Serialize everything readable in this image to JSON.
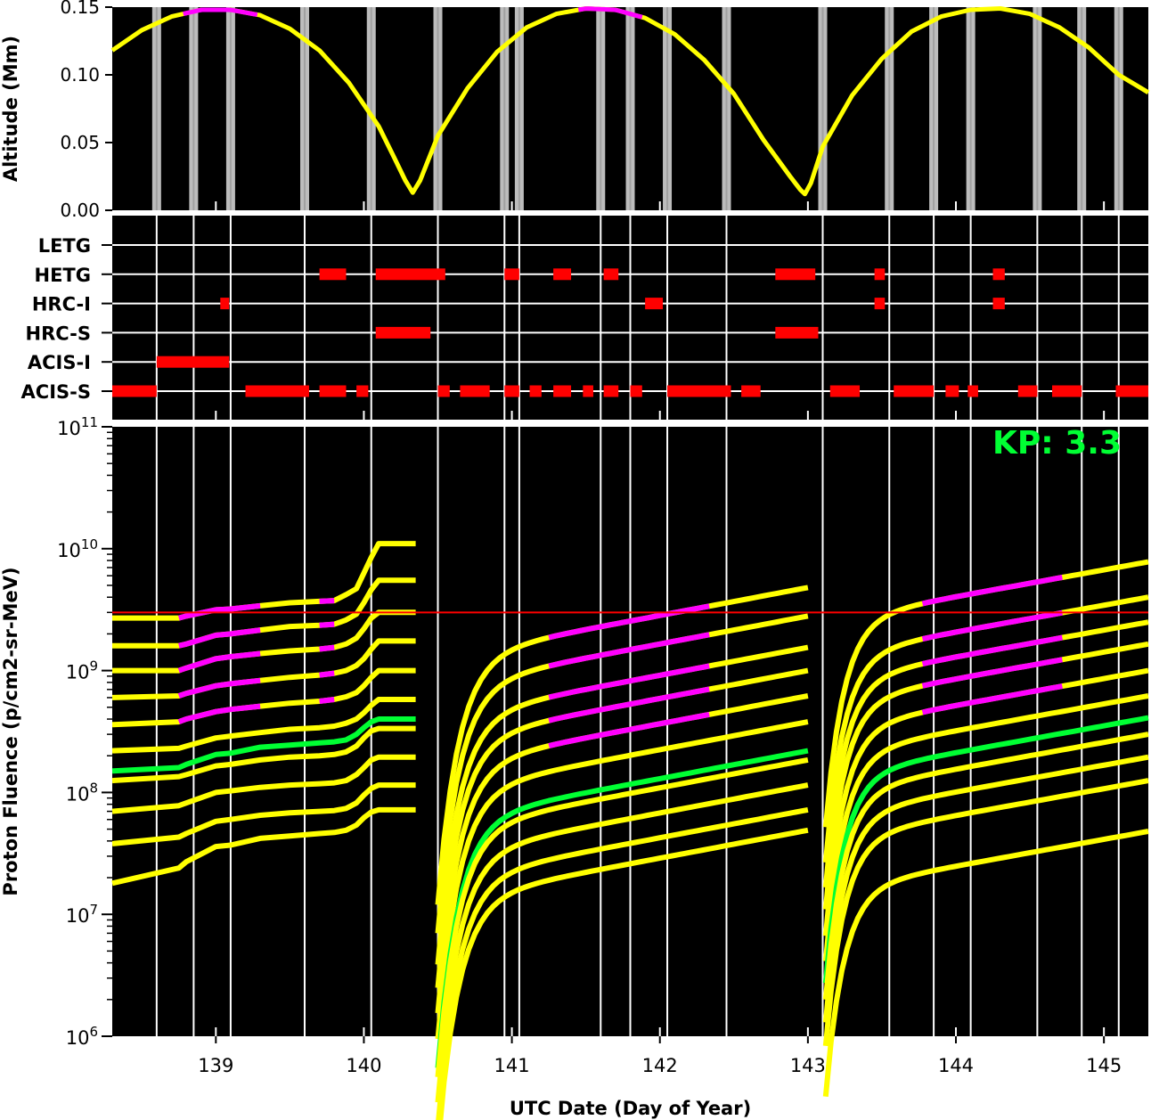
{
  "chart_data": [
    {
      "type": "line",
      "panel": "altitude",
      "ylabel": "Altitude (Mm)",
      "ylim": [
        0.0,
        0.15
      ],
      "yticks": [
        "0.00",
        "0.05",
        "0.10",
        "0.15"
      ],
      "xlim": [
        138.3,
        145.3
      ],
      "series": [
        {
          "color": "#ffff00",
          "x": [
            138.3,
            138.5,
            138.7,
            138.9,
            139.1,
            139.3,
            139.5,
            139.7,
            139.9,
            140.1,
            140.2,
            140.28,
            140.33,
            140.38,
            140.5,
            140.7,
            140.9,
            141.1,
            141.3,
            141.5,
            141.7,
            141.9,
            142.1,
            142.3,
            142.5,
            142.7,
            142.88,
            142.95,
            142.98,
            143.02,
            143.1,
            143.3,
            143.5,
            143.7,
            143.9,
            144.1,
            144.3,
            144.5,
            144.7,
            144.9,
            145.1,
            145.3
          ],
          "y": [
            0.118,
            0.133,
            0.143,
            0.148,
            0.148,
            0.144,
            0.134,
            0.118,
            0.094,
            0.062,
            0.04,
            0.022,
            0.013,
            0.022,
            0.055,
            0.09,
            0.117,
            0.135,
            0.145,
            0.149,
            0.148,
            0.142,
            0.13,
            0.111,
            0.086,
            0.052,
            0.025,
            0.015,
            0.012,
            0.02,
            0.047,
            0.085,
            0.112,
            0.132,
            0.143,
            0.148,
            0.149,
            0.145,
            0.135,
            0.12,
            0.1,
            0.087
          ]
        }
      ],
      "highlight_color": "#ff00ff",
      "highlight_ranges": [
        [
          138.78,
          139.28
        ],
        [
          141.45,
          141.88
        ]
      ],
      "shaded_bands_color": "#dddddd",
      "shaded_bands_x": [
        138.6,
        138.85,
        139.1,
        139.6,
        140.05,
        140.5,
        140.95,
        141.05,
        141.6,
        141.8,
        142.05,
        142.45,
        143.1,
        143.55,
        143.85,
        144.1,
        144.55,
        144.85,
        145.1
      ]
    },
    {
      "type": "timeline",
      "panel": "instruments",
      "categories": [
        "LETG",
        "HETG",
        "HRC-I",
        "HRC-S",
        "ACIS-I",
        "ACIS-S"
      ],
      "bar_color": "#ff0000",
      "intervals": {
        "LETG": [],
        "HETG": [
          [
            139.7,
            139.88
          ],
          [
            140.08,
            140.55
          ],
          [
            140.95,
            141.05
          ],
          [
            141.28,
            141.4
          ],
          [
            141.62,
            141.72
          ],
          [
            142.78,
            143.05
          ],
          [
            143.45,
            143.52
          ],
          [
            144.25,
            144.33
          ]
        ],
        "HRC-I": [
          [
            139.03,
            139.09
          ],
          [
            141.9,
            142.02
          ],
          [
            143.45,
            143.52
          ],
          [
            144.25,
            144.33
          ]
        ],
        "HRC-S": [
          [
            140.08,
            140.45
          ],
          [
            142.78,
            143.07
          ]
        ],
        "ACIS-I": [
          [
            138.6,
            139.09
          ]
        ],
        "ACIS-S": [
          [
            138.3,
            138.6
          ],
          [
            139.2,
            139.63
          ],
          [
            139.7,
            139.88
          ],
          [
            139.95,
            140.03
          ],
          [
            140.5,
            140.58
          ],
          [
            140.65,
            140.85
          ],
          [
            140.95,
            141.05
          ],
          [
            141.12,
            141.2
          ],
          [
            141.28,
            141.4
          ],
          [
            141.48,
            141.55
          ],
          [
            141.62,
            141.72
          ],
          [
            141.8,
            141.88
          ],
          [
            142.05,
            142.48
          ],
          [
            142.55,
            142.68
          ],
          [
            143.15,
            143.35
          ],
          [
            143.58,
            143.85
          ],
          [
            143.93,
            144.02
          ],
          [
            144.08,
            144.15
          ],
          [
            144.42,
            144.55
          ],
          [
            144.65,
            144.85
          ],
          [
            145.08,
            145.3
          ]
        ]
      },
      "gridlines_x": [
        138.6,
        138.85,
        139.1,
        139.6,
        140.05,
        140.5,
        140.95,
        141.05,
        141.6,
        141.8,
        142.05,
        142.45,
        143.1,
        143.55,
        143.85,
        144.1,
        144.55,
        144.85,
        145.1
      ]
    },
    {
      "type": "line",
      "panel": "fluence",
      "ylabel": "Proton Fluence (p/cm2-sr-MeV)",
      "xlabel": "UTC Date (Day of Year)",
      "yscale": "log",
      "ylim": [
        1000000.0,
        100000000000.0
      ],
      "ytick_labels": [
        "10^6",
        "10^7",
        "10^8",
        "10^9",
        "10^10",
        "10^11"
      ],
      "xlim": [
        138.3,
        145.3
      ],
      "xtick_labels": [
        "139",
        "140",
        "141",
        "142",
        "143",
        "144",
        "145"
      ],
      "threshold": 3000000000.0,
      "threshold_color": "#ff0000",
      "segment_starts": [
        138.3,
        140.5,
        143.12
      ],
      "segment_ends": [
        140.35,
        143.0,
        145.3
      ],
      "segment_end_values": [
        [
          11000000000.0,
          5500000000.0,
          3000000000.0,
          1750000000.0,
          1000000000.0,
          580000000.0,
          400000000.0,
          335000000.0,
          195000000.0,
          115000000.0,
          72000000.0
        ],
        [
          4800000000.0,
          2800000000.0,
          1550000000.0,
          1000000000.0,
          620000000.0,
          380000000.0,
          220000000.0,
          185000000.0,
          115000000.0,
          72000000.0,
          49000000.0
        ],
        [
          7800000000.0,
          4000000000.0,
          2500000000.0,
          1650000000.0,
          1000000000.0,
          620000000.0,
          410000000.0,
          300000000.0,
          195000000.0,
          125000000.0,
          48000000.0
        ]
      ],
      "series": [
        {
          "color": "#ffff00",
          "x": [
            138.3,
            138.75,
            138.8,
            139.0,
            139.1,
            139.3,
            139.5,
            139.7,
            139.8,
            139.88,
            139.95,
            140.0,
            140.05,
            140.1,
            140.35
          ],
          "y": [
            2700000000.0,
            2700000000.0,
            2800000000.0,
            3150000000.0,
            3200000000.0,
            3400000000.0,
            3600000000.0,
            3700000000.0,
            3750000000.0,
            4200000000.0,
            4700000000.0,
            6300000000.0,
            8500000000.0,
            11000000000.0,
            11000000000.0
          ]
        },
        {
          "color": "#ffff00",
          "x": [
            138.3,
            138.75,
            138.8,
            139.0,
            139.1,
            139.3,
            139.5,
            139.7,
            139.8,
            139.88,
            139.95,
            140.0,
            140.05,
            140.1,
            140.35
          ],
          "y": [
            1600000000.0,
            1600000000.0,
            1650000000.0,
            1950000000.0,
            2000000000.0,
            2150000000.0,
            2300000000.0,
            2350000000.0,
            2400000000.0,
            2600000000.0,
            2900000000.0,
            3600000000.0,
            4600000000.0,
            5500000000.0,
            5500000000.0
          ]
        },
        {
          "color": "#ffff00",
          "x": [
            138.3,
            138.75,
            138.8,
            139.0,
            139.1,
            139.3,
            139.5,
            139.7,
            139.8,
            139.88,
            139.95,
            140.0,
            140.05,
            140.1,
            140.35
          ],
          "y": [
            1000000000.0,
            1000000000.0,
            1050000000.0,
            1250000000.0,
            1300000000.0,
            1380000000.0,
            1450000000.0,
            1500000000.0,
            1550000000.0,
            1650000000.0,
            1850000000.0,
            2200000000.0,
            2700000000.0,
            3000000000.0,
            3000000000.0
          ]
        },
        {
          "color": "#ffff00",
          "x": [
            138.3,
            138.75,
            138.8,
            139.0,
            139.1,
            139.3,
            139.5,
            139.7,
            139.8,
            139.88,
            139.95,
            140.0,
            140.05,
            140.1,
            140.35
          ],
          "y": [
            600000000.0,
            620000000.0,
            650000000.0,
            750000000.0,
            780000000.0,
            830000000.0,
            880000000.0,
            920000000.0,
            950000000.0,
            1000000000.0,
            1100000000.0,
            1250000000.0,
            1500000000.0,
            1750000000.0,
            1750000000.0
          ]
        },
        {
          "color": "#ffff00",
          "x": [
            138.3,
            138.75,
            138.8,
            139.0,
            139.1,
            139.3,
            139.5,
            139.7,
            139.8,
            139.88,
            139.95,
            140.0,
            140.05,
            140.1,
            140.35
          ],
          "y": [
            360000000.0,
            380000000.0,
            400000000.0,
            460000000.0,
            480000000.0,
            510000000.0,
            540000000.0,
            560000000.0,
            580000000.0,
            610000000.0,
            660000000.0,
            750000000.0,
            880000000.0,
            1000000000.0,
            1000000000.0
          ]
        },
        {
          "color": "#ffff00",
          "x": [
            138.3,
            138.75,
            138.8,
            139.0,
            139.1,
            139.3,
            139.5,
            139.7,
            139.8,
            139.88,
            139.95,
            140.0,
            140.05,
            140.1,
            140.35
          ],
          "y": [
            220000000.0,
            230000000.0,
            240000000.0,
            280000000.0,
            290000000.0,
            310000000.0,
            330000000.0,
            340000000.0,
            350000000.0,
            370000000.0,
            400000000.0,
            450000000.0,
            520000000.0,
            580000000.0,
            580000000.0
          ]
        },
        {
          "color": "#ffff00",
          "x": [
            138.3,
            138.75,
            138.8,
            139.0,
            139.1,
            139.3,
            139.5,
            139.7,
            139.8,
            139.88,
            139.95,
            140.0,
            140.05,
            140.1,
            140.35
          ],
          "y": [
            150000000.0,
            160000000.0,
            170000000.0,
            205000000.0,
            210000000.0,
            235000000.0,
            245000000.0,
            255000000.0,
            260000000.0,
            270000000.0,
            300000000.0,
            340000000.0,
            380000000.0,
            400000000.0,
            400000000.0
          ]
        },
        {
          "color": "#ffff00",
          "x": [
            138.3,
            138.75,
            138.8,
            139.0,
            139.1,
            139.3,
            139.5,
            139.7,
            139.8,
            139.88,
            139.95,
            140.0,
            140.05,
            140.1,
            140.35
          ],
          "y": [
            125000000.0,
            135000000.0,
            140000000.0,
            165000000.0,
            170000000.0,
            185000000.0,
            195000000.0,
            200000000.0,
            205000000.0,
            215000000.0,
            240000000.0,
            280000000.0,
            320000000.0,
            335000000.0,
            335000000.0
          ]
        },
        {
          "color": "#ffff00",
          "x": [
            138.3,
            138.75,
            138.8,
            139.0,
            139.1,
            139.3,
            139.5,
            139.7,
            139.8,
            139.88,
            139.95,
            140.0,
            140.05,
            140.1,
            140.35
          ],
          "y": [
            70000000.0,
            78000000.0,
            82000000.0,
            100000000.0,
            103000000.0,
            110000000.0,
            115000000.0,
            118000000.0,
            120000000.0,
            125000000.0,
            140000000.0,
            160000000.0,
            185000000.0,
            195000000.0,
            195000000.0
          ]
        },
        {
          "color": "#ffff00",
          "x": [
            138.3,
            138.75,
            138.8,
            139.0,
            139.1,
            139.3,
            139.5,
            139.7,
            139.8,
            139.88,
            139.95,
            140.0,
            140.05,
            140.1,
            140.35
          ],
          "y": [
            38000000.0,
            43000000.0,
            46000000.0,
            58000000.0,
            60000000.0,
            65000000.0,
            68000000.0,
            70000000.0,
            71000000.0,
            74000000.0,
            82000000.0,
            95000000.0,
            108000000.0,
            115000000.0,
            115000000.0
          ]
        },
        {
          "color": "#ffff00",
          "x": [
            138.3,
            138.75,
            138.8,
            139.0,
            139.1,
            139.3,
            139.5,
            139.7,
            139.8,
            139.88,
            139.95,
            140.0,
            140.05,
            140.1,
            140.35
          ],
          "y": [
            18000000.0,
            24000000.0,
            27000000.0,
            36000000.0,
            37000000.0,
            42000000.0,
            44000000.0,
            46000000.0,
            47000000.0,
            49000000.0,
            54000000.0,
            62000000.0,
            69000000.0,
            72000000.0,
            72000000.0
          ]
        }
      ],
      "magenta_ranges": [
        [
          138.75,
          139.3
        ],
        [
          139.7,
          139.85
        ]
      ],
      "green_series_index": 6,
      "kp_label": "KP:",
      "kp_value": "3.3"
    }
  ]
}
